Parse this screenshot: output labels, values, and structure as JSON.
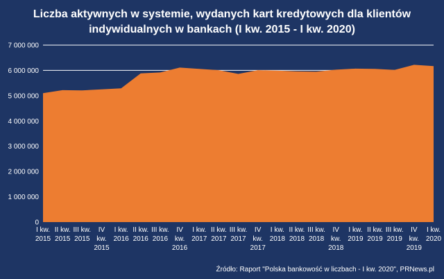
{
  "chart_data": {
    "type": "area",
    "title_line1": "Liczba aktywnych w systemie, wydanych kart kredytowych dla klientów",
    "title_line2": "indywidualnych w bankach (I kw. 2015 - I kw. 2020)",
    "categories": [
      [
        "I kw.",
        "2015"
      ],
      [
        "II kw.",
        "2015"
      ],
      [
        "III kw.",
        "2015"
      ],
      [
        "IV",
        "kw.",
        "2015"
      ],
      [
        "I kw.",
        "2016"
      ],
      [
        "II kw.",
        "2016"
      ],
      [
        "III kw.",
        "2016"
      ],
      [
        "IV",
        "kw.",
        "2016"
      ],
      [
        "I kw.",
        "2017"
      ],
      [
        "II kw.",
        "2017"
      ],
      [
        "III kw.",
        "2017"
      ],
      [
        "IV",
        "kw.",
        "2017"
      ],
      [
        "I kw.",
        "2018"
      ],
      [
        "II kw.",
        "2018"
      ],
      [
        "III kw.",
        "2018"
      ],
      [
        "IV",
        "kw.",
        "2018"
      ],
      [
        "I kw.",
        "2019"
      ],
      [
        "II kw.",
        "2019"
      ],
      [
        "III kw.",
        "2019"
      ],
      [
        "IV",
        "kw.",
        "2019"
      ],
      [
        "I kw.",
        "2020"
      ]
    ],
    "values": [
      5100000,
      5220000,
      5210000,
      5250000,
      5290000,
      5880000,
      5920000,
      6110000,
      6060000,
      6010000,
      5860000,
      6010000,
      5990000,
      5960000,
      5950000,
      6030000,
      6070000,
      6060000,
      6020000,
      6220000,
      6170000
    ],
    "yticks": [
      "0",
      "1 000 000",
      "2 000 000",
      "3 000 000",
      "4 000 000",
      "5 000 000",
      "6 000 000",
      "7 000 000"
    ],
    "ylim": [
      0,
      7000000
    ],
    "grid": true,
    "colors": {
      "area": "#ed7d31",
      "background": "#1e3564",
      "grid": "#ffffff",
      "text": "#ffffff"
    },
    "source": "Źródło: Raport \"Polska bankowość w liczbach - I kw. 2020\", PRNews.pl"
  }
}
